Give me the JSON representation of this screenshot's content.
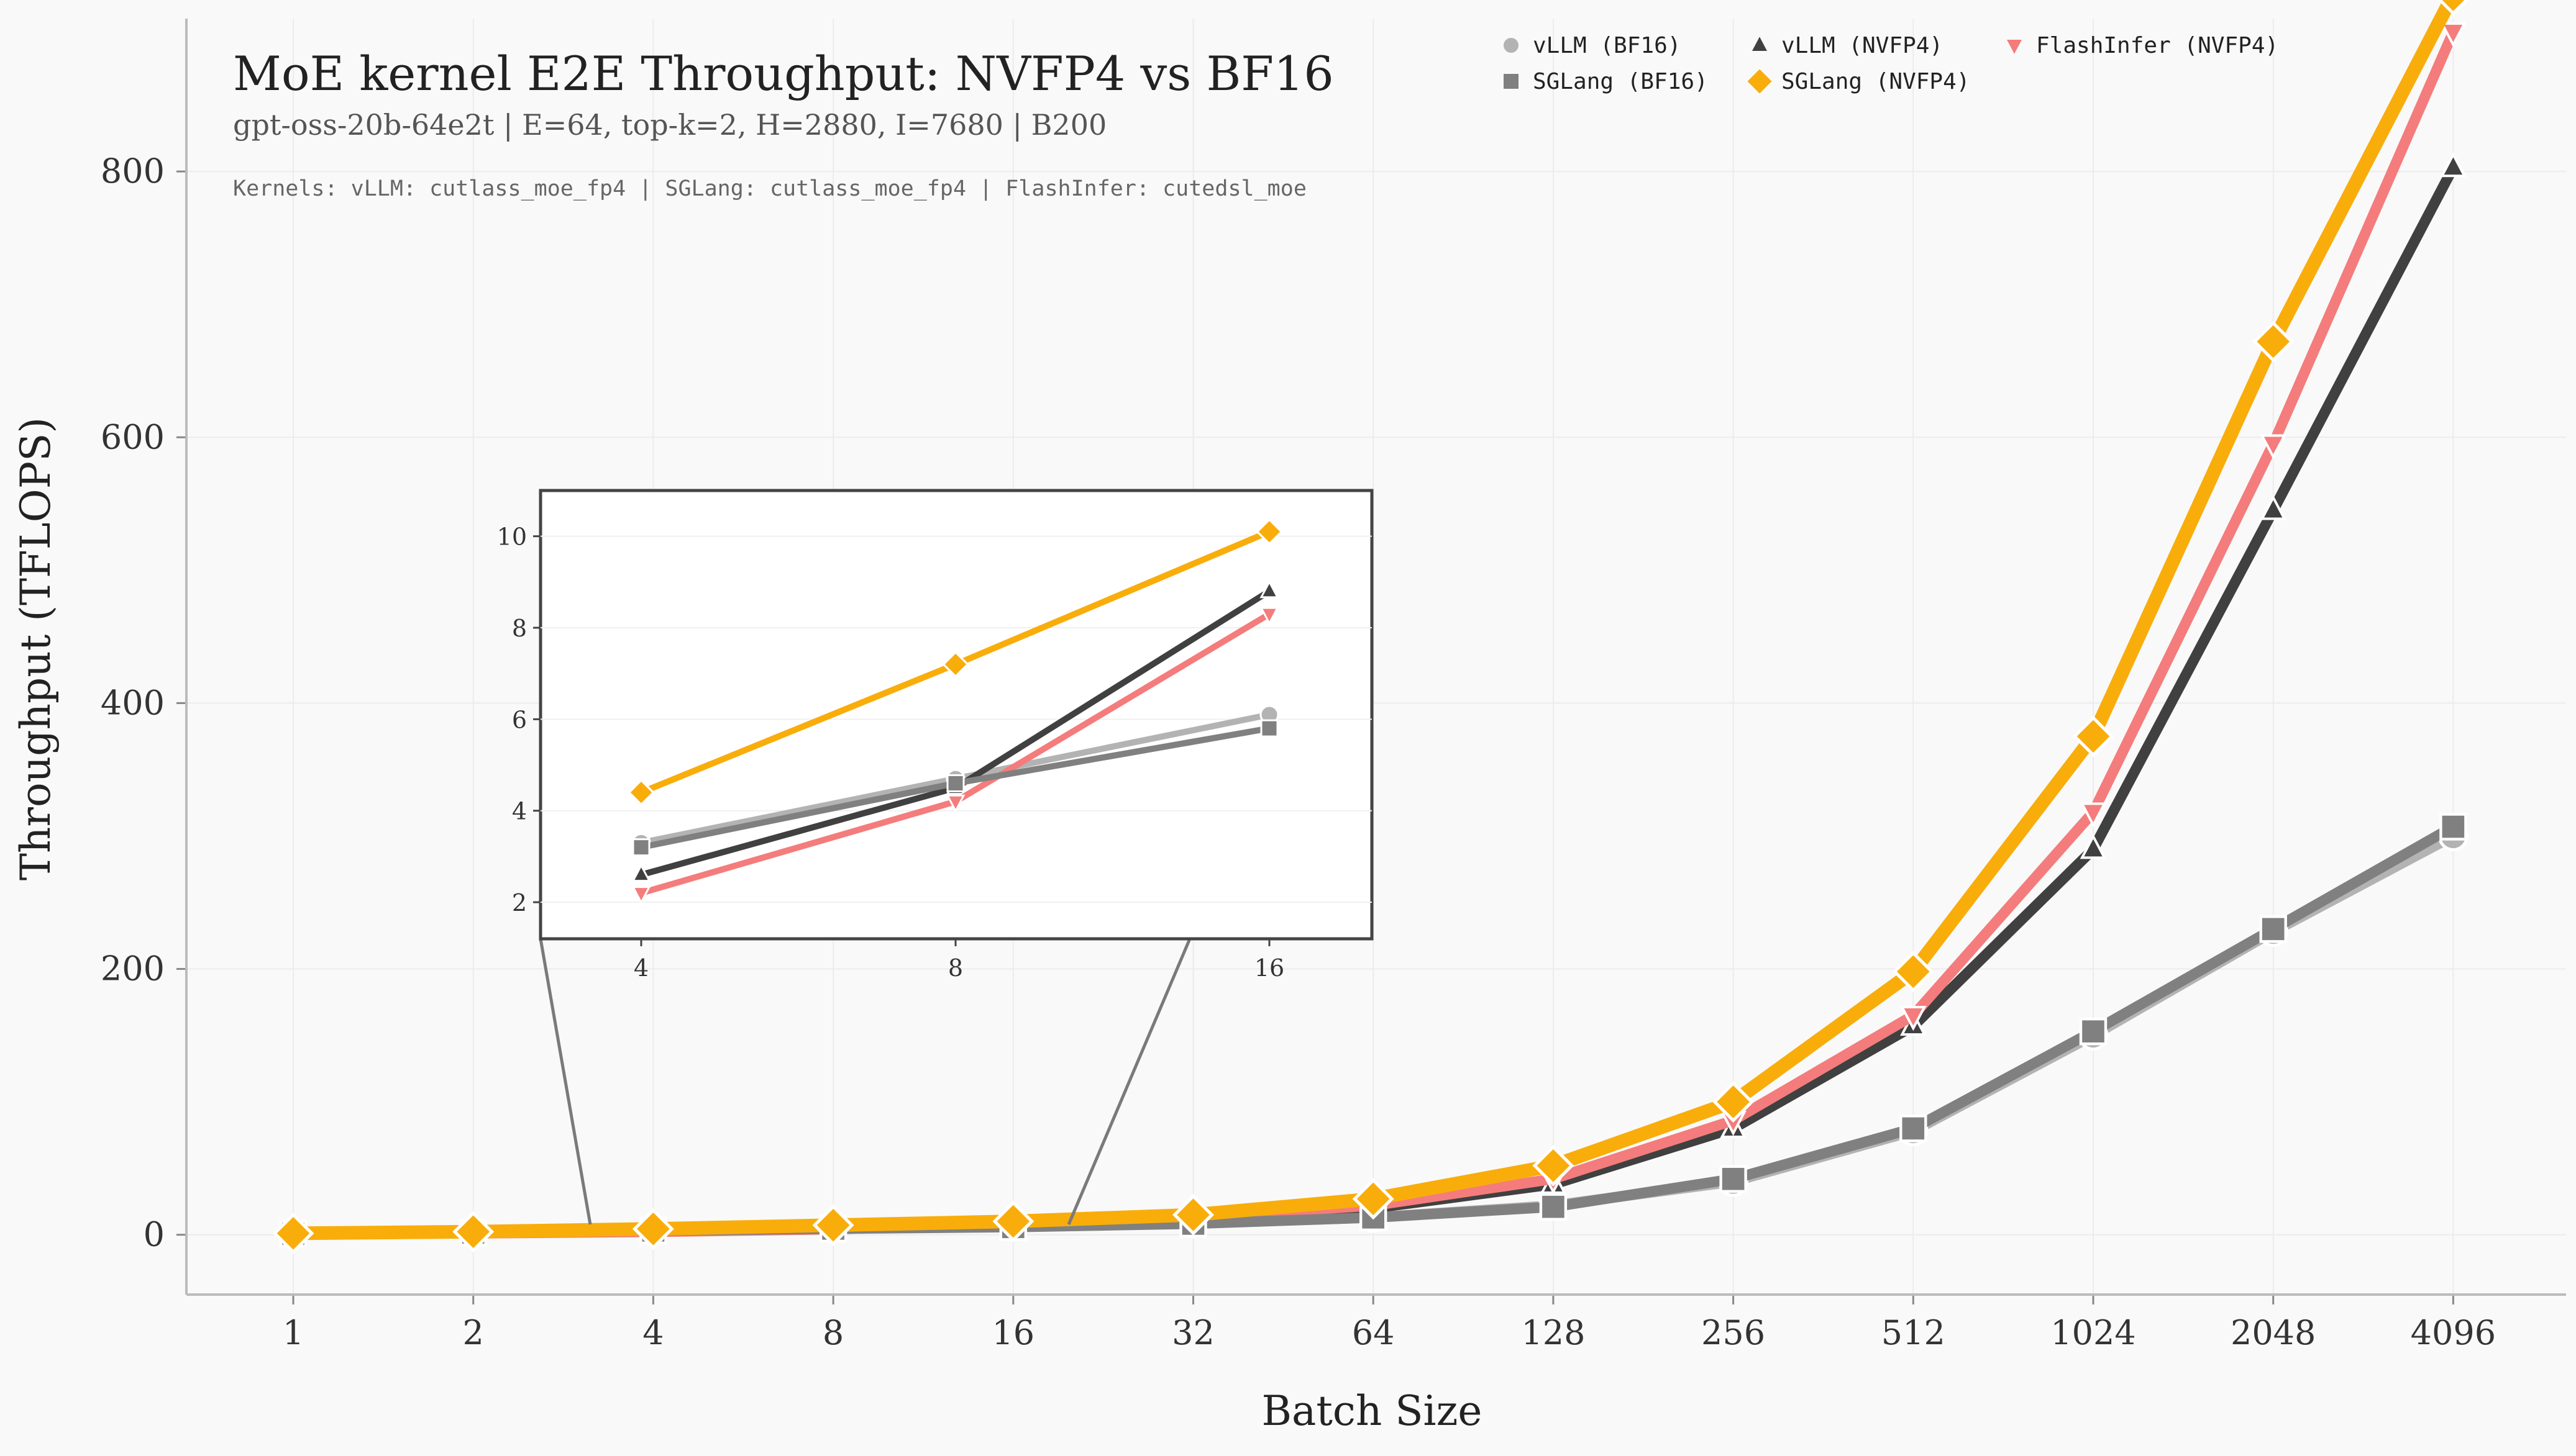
{
  "chart_data": {
    "type": "line",
    "title": "MoE kernel E2E Throughput: NVFP4 vs BF16",
    "subtitle": "gpt-oss-20b-64e2t | E=64, top-k=2, H=2880, I=7680 | B200",
    "note": "Kernels: vLLM: cutlass_moe_fp4 | SGLang: cutlass_moe_fp4 | FlashInfer: cutedsl_moe",
    "xlabel": "Batch Size",
    "ylabel": "Throughput (TFLOPS)",
    "x_scale": "log2",
    "categories": [
      "1",
      "2",
      "4",
      "8",
      "16",
      "32",
      "64",
      "128",
      "256",
      "512",
      "1024",
      "2048",
      "4096"
    ],
    "ylim": [
      -45,
      915
    ],
    "yticks": [
      0,
      200,
      400,
      600,
      800
    ],
    "grid": true,
    "legend_position": "top-right",
    "series": [
      {
        "name": "vLLM (BF16)",
        "color": "#b3b3b3",
        "marker": "circle",
        "values": [
          0.8,
          1.6,
          3.3,
          4.7,
          6.1,
          8.5,
          13,
          22,
          40,
          78,
          150,
          228,
          300
        ]
      },
      {
        "name": "vLLM (NVFP4)",
        "color": "#404040",
        "marker": "triangle-up",
        "values": [
          0.7,
          1.3,
          2.6,
          4.5,
          8.8,
          13,
          20,
          38,
          80,
          157,
          290,
          545,
          803
        ]
      },
      {
        "name": "FlashInfer (NVFP4)",
        "color": "#f47c7c",
        "marker": "triangle-down",
        "values": [
          0.6,
          1.1,
          2.2,
          4.2,
          8.3,
          13,
          22,
          42,
          86,
          165,
          318,
          595,
          905
        ]
      },
      {
        "name": "SGLang (BF16)",
        "color": "#808080",
        "marker": "square",
        "values": [
          0.8,
          1.6,
          3.2,
          4.6,
          5.8,
          8.3,
          13,
          21,
          42,
          80,
          153,
          230,
          307
        ]
      },
      {
        "name": "SGLang (NVFP4)",
        "color": "#f9ad0b",
        "marker": "diamond",
        "values": [
          1.1,
          2.3,
          4.4,
          7.2,
          10.1,
          15,
          27,
          52,
          100,
          198,
          375,
          672,
          933
        ]
      }
    ],
    "inset": {
      "categories": [
        "4",
        "8",
        "16"
      ],
      "ylim": [
        1.2,
        11
      ],
      "yticks": [
        2,
        4,
        6,
        8,
        10
      ],
      "values": {
        "vLLM (BF16)": [
          3.3,
          4.7,
          6.1
        ],
        "vLLM (NVFP4)": [
          2.6,
          4.5,
          8.8
        ],
        "FlashInfer (NVFP4)": [
          2.2,
          4.2,
          8.3
        ],
        "SGLang (BF16)": [
          3.2,
          4.6,
          5.8
        ],
        "SGLang (NVFP4)": [
          4.4,
          7.2,
          10.1
        ]
      }
    }
  }
}
